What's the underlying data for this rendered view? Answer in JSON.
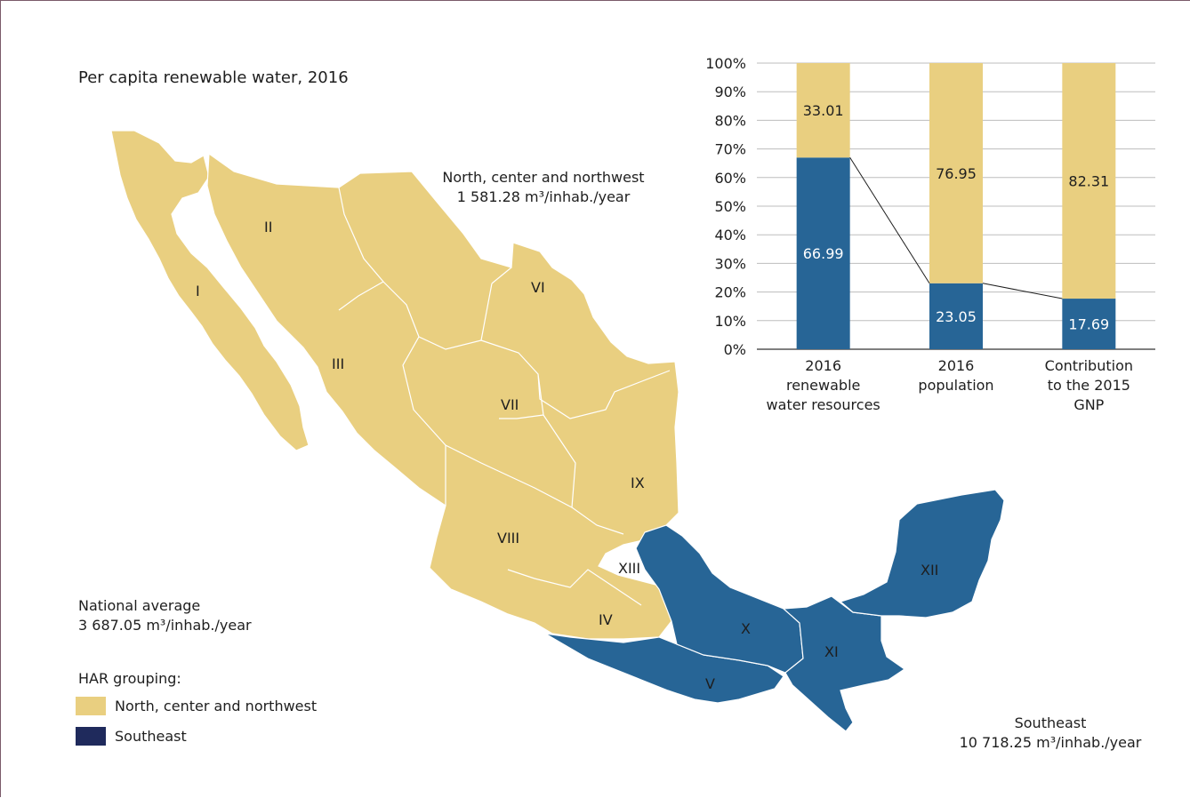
{
  "map": {
    "title": "Per capita renewable water, 2016",
    "north_label": "North, center and northwest",
    "north_value": "1 581.28 m³/inhab./year",
    "national_label": "National average",
    "national_value": "3 687.05 m³/inhab./year",
    "southeast_label": "Southeast",
    "southeast_value": "10 718.25 m³/inhab./year",
    "colors": {
      "north": "#e9cf80",
      "southeast": "#276596",
      "legend_southeast": "#1f2a5c"
    },
    "regions_north": [
      "I",
      "II",
      "III",
      "VI",
      "VII",
      "VIII",
      "IX",
      "XIII",
      "IV"
    ],
    "regions_southeast": [
      "V",
      "X",
      "XI",
      "XII"
    ]
  },
  "legend": {
    "title": "HAR grouping:",
    "items": [
      {
        "label": "North, center and northwest",
        "color": "#e9cf80"
      },
      {
        "label": "Southeast",
        "color": "#1f2a5c"
      }
    ]
  },
  "chart_data": {
    "type": "bar",
    "stacked": true,
    "categories": [
      [
        "2016",
        "renewable",
        "water resources"
      ],
      [
        "2016",
        "population"
      ],
      [
        "Contribution",
        "to the 2015",
        "GNP"
      ]
    ],
    "series": [
      {
        "values": [
          66.99,
          23.05,
          17.69
        ],
        "labels": [
          "66.99",
          "23.05",
          "17.69"
        ],
        "color": "#276596"
      },
      {
        "values": [
          33.01,
          76.95,
          82.31
        ],
        "labels": [
          "33.01",
          "76.95",
          "82.31"
        ],
        "color": "#e9cf80"
      }
    ],
    "yticks": [
      "0%",
      "10%",
      "20%",
      "30%",
      "40%",
      "50%",
      "60%",
      "70%",
      "80%",
      "90%",
      "100%"
    ],
    "ylim": [
      0,
      100
    ],
    "grid": true,
    "connector_lines": true
  }
}
